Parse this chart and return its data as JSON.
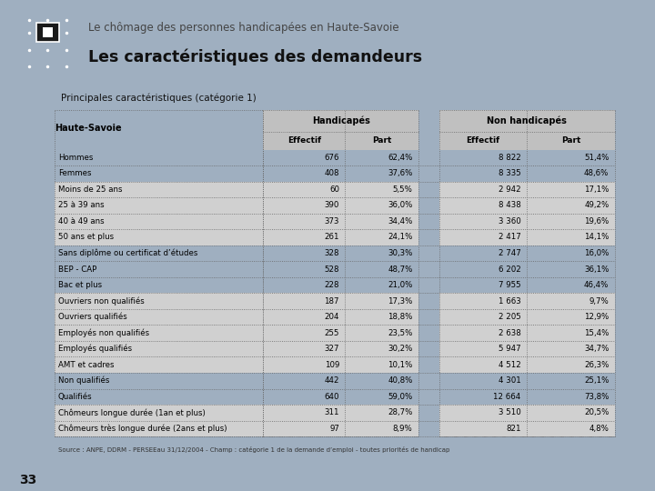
{
  "title_sub": "Le chômage des personnes handicapées en Haute-Savoie",
  "title_main": "Les caractéristiques des demandeurs",
  "section_title": "Principales caractéristiques (catégorie 1)",
  "col_header_left": "Haute-Savoie",
  "col_header_h": "Handicapés",
  "col_header_nh": "Non handicapés",
  "col_sub_effectif": "Effectif",
  "col_sub_part": "Part",
  "source": "Source : ANPE, DDRM - PERSEEau 31/12/2004 - Champ : catégorie 1 de la demande d’emploi - toutes priorités de handicap",
  "page_num": "33",
  "rows": [
    {
      "label": "Hommes",
      "h_eff": "676",
      "h_part": "62,4%",
      "nh_eff": "8 822",
      "nh_part": "51,4%",
      "shaded": false,
      "border_above": false
    },
    {
      "label": "Femmes",
      "h_eff": "408",
      "h_part": "37,6%",
      "nh_eff": "8 335",
      "nh_part": "48,6%",
      "shaded": false,
      "border_above": false
    },
    {
      "label": "Moins de 25 ans",
      "h_eff": "60",
      "h_part": "5,5%",
      "nh_eff": "2 942",
      "nh_part": "17,1%",
      "shaded": true,
      "border_above": true
    },
    {
      "label": "25 à 39 ans",
      "h_eff": "390",
      "h_part": "36,0%",
      "nh_eff": "8 438",
      "nh_part": "49,2%",
      "shaded": true,
      "border_above": false
    },
    {
      "label": "40 à 49 ans",
      "h_eff": "373",
      "h_part": "34,4%",
      "nh_eff": "3 360",
      "nh_part": "19,6%",
      "shaded": true,
      "border_above": false
    },
    {
      "label": "50 ans et plus",
      "h_eff": "261",
      "h_part": "24,1%",
      "nh_eff": "2 417",
      "nh_part": "14,1%",
      "shaded": true,
      "border_above": false
    },
    {
      "label": "Sans diplôme ou certificat d’études",
      "h_eff": "328",
      "h_part": "30,3%",
      "nh_eff": "2 747",
      "nh_part": "16,0%",
      "shaded": false,
      "border_above": true
    },
    {
      "label": "BEP - CAP",
      "h_eff": "528",
      "h_part": "48,7%",
      "nh_eff": "6 202",
      "nh_part": "36,1%",
      "shaded": false,
      "border_above": false
    },
    {
      "label": "Bac et plus",
      "h_eff": "228",
      "h_part": "21,0%",
      "nh_eff": "7 955",
      "nh_part": "46,4%",
      "shaded": false,
      "border_above": false
    },
    {
      "label": "Ouvriers non qualifiés",
      "h_eff": "187",
      "h_part": "17,3%",
      "nh_eff": "1 663",
      "nh_part": "9,7%",
      "shaded": true,
      "border_above": true
    },
    {
      "label": "Ouvriers qualifiés",
      "h_eff": "204",
      "h_part": "18,8%",
      "nh_eff": "2 205",
      "nh_part": "12,9%",
      "shaded": true,
      "border_above": false
    },
    {
      "label": "Employés non qualifiés",
      "h_eff": "255",
      "h_part": "23,5%",
      "nh_eff": "2 638",
      "nh_part": "15,4%",
      "shaded": true,
      "border_above": false
    },
    {
      "label": "Employés qualifiés",
      "h_eff": "327",
      "h_part": "30,2%",
      "nh_eff": "5 947",
      "nh_part": "34,7%",
      "shaded": true,
      "border_above": false
    },
    {
      "label": "AMT et cadres",
      "h_eff": "109",
      "h_part": "10,1%",
      "nh_eff": "4 512",
      "nh_part": "26,3%",
      "shaded": true,
      "border_above": false
    },
    {
      "label": "Non qualifiés",
      "h_eff": "442",
      "h_part": "40,8%",
      "nh_eff": "4 301",
      "nh_part": "25,1%",
      "shaded": false,
      "border_above": true
    },
    {
      "label": "Qualifiés",
      "h_eff": "640",
      "h_part": "59,0%",
      "nh_eff": "12 664",
      "nh_part": "73,8%",
      "shaded": false,
      "border_above": false
    },
    {
      "label": "Chômeurs longue durée (1an et plus)",
      "h_eff": "311",
      "h_part": "28,7%",
      "nh_eff": "3 510",
      "nh_part": "20,5%",
      "shaded": true,
      "border_above": true
    },
    {
      "label": "Chômeurs très longue durée (2ans et plus)",
      "h_eff": "97",
      "h_part": "8,9%",
      "nh_eff": "821",
      "nh_part": "4,8%",
      "shaded": true,
      "border_above": false
    }
  ],
  "bg_color": "#9fafc0",
  "shaded_color": "#d0d0d0",
  "header_bg": "#c0c0c0",
  "logo_bg": "#1a1a1a"
}
